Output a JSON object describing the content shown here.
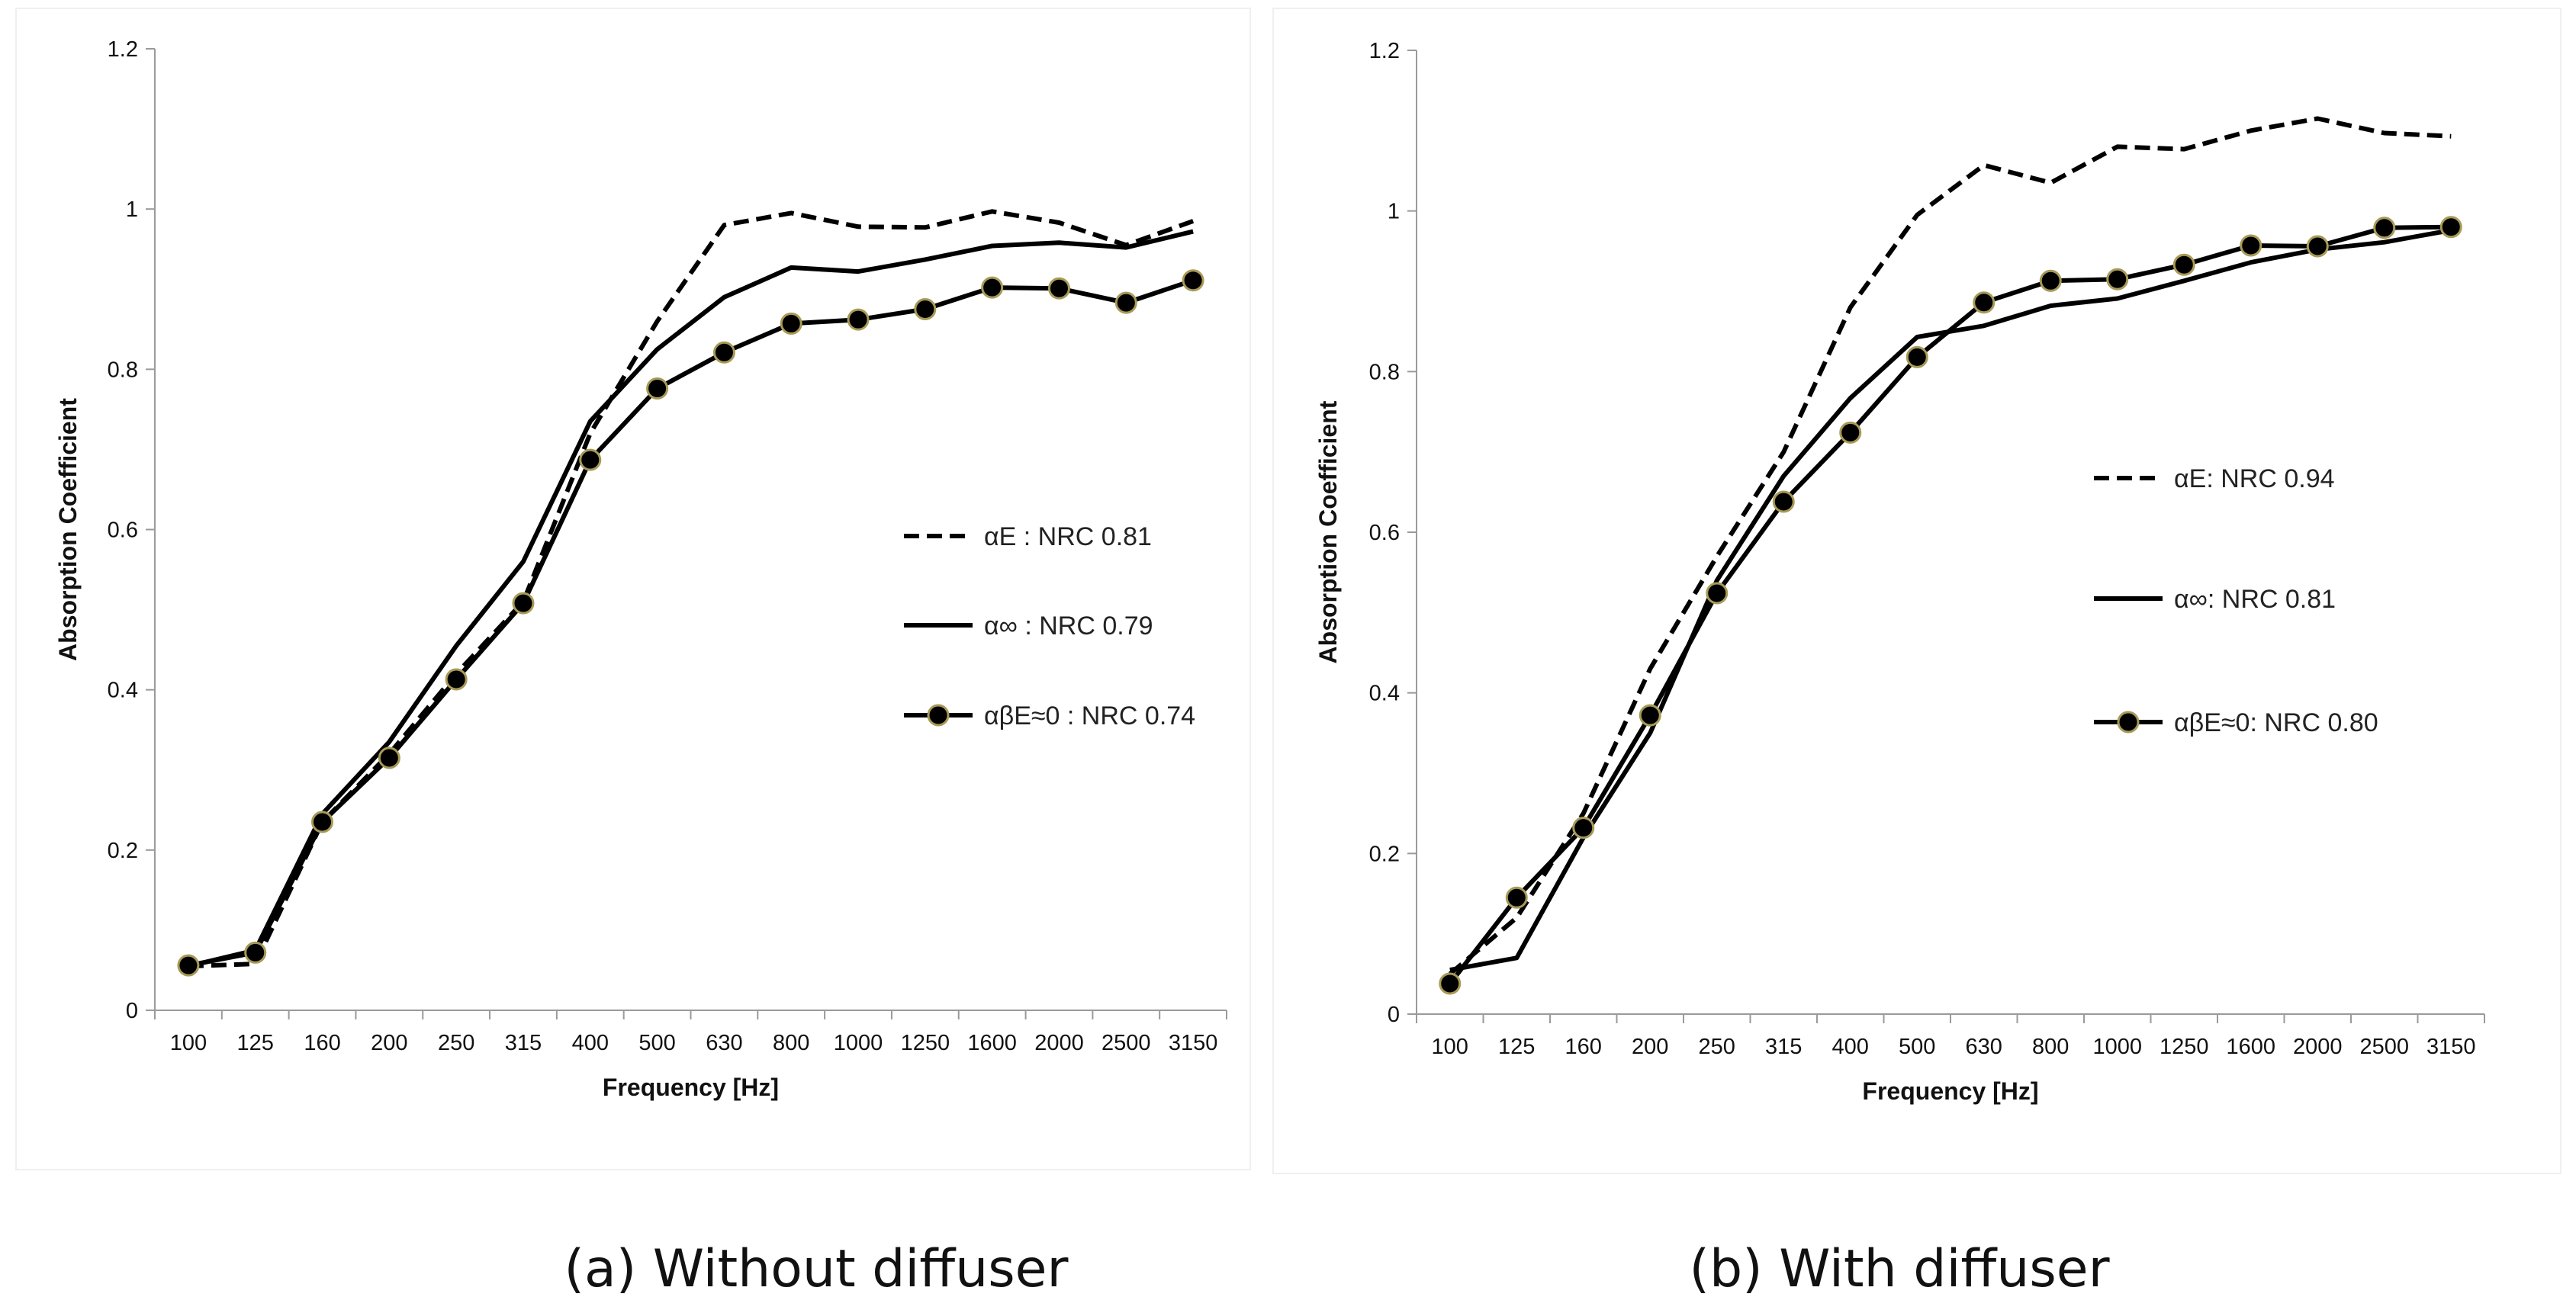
{
  "captions": {
    "a": "(a) Without diffuser",
    "b": "(b) With diffuser"
  },
  "chart_data": [
    {
      "type": "line",
      "panel": "a",
      "title": "",
      "xlabel": "Frequency [Hz]",
      "ylabel": "Absorption Coefficient",
      "categories": [
        "100",
        "125",
        "160",
        "200",
        "250",
        "315",
        "400",
        "500",
        "630",
        "800",
        "1000",
        "1250",
        "1600",
        "2000",
        "2500",
        "3150"
      ],
      "ylim": [
        0,
        1.2
      ],
      "yticks": [
        "0",
        "0.2",
        "0.4",
        "0.6",
        "0.8",
        "1",
        "1.2"
      ],
      "grid": false,
      "legend_position": "right",
      "series": [
        {
          "name": "αE : NRC 0.81",
          "style": "dashed",
          "values": [
            0.055,
            0.058,
            0.235,
            0.32,
            0.42,
            0.51,
            0.72,
            0.86,
            0.98,
            0.995,
            0.978,
            0.977,
            0.997,
            0.983,
            0.955,
            0.985
          ]
        },
        {
          "name": "α∞ : NRC 0.79",
          "style": "solid",
          "values": [
            0.055,
            0.075,
            0.245,
            0.335,
            0.455,
            0.56,
            0.735,
            0.825,
            0.89,
            0.927,
            0.922,
            0.937,
            0.954,
            0.958,
            0.952,
            0.972
          ]
        },
        {
          "name": "αβE≈0 : NRC 0.74",
          "style": "solid-marker",
          "values": [
            0.056,
            0.072,
            0.235,
            0.315,
            0.413,
            0.508,
            0.687,
            0.776,
            0.821,
            0.857,
            0.862,
            0.875,
            0.902,
            0.901,
            0.883,
            0.911
          ]
        }
      ]
    },
    {
      "type": "line",
      "panel": "b",
      "title": "",
      "xlabel": "Frequency [Hz]",
      "ylabel": "Absorption Coefficient",
      "categories": [
        "100",
        "125",
        "160",
        "200",
        "250",
        "315",
        "400",
        "500",
        "630",
        "800",
        "1000",
        "1250",
        "1600",
        "2000",
        "2500",
        "3150"
      ],
      "ylim": [
        0,
        1.2
      ],
      "yticks": [
        "0",
        "0.2",
        "0.4",
        "0.6",
        "0.8",
        "1",
        "1.2"
      ],
      "grid": false,
      "legend_position": "right",
      "series": [
        {
          "name": "αE: NRC 0.94",
          "style": "dashed",
          "values": [
            0.05,
            0.12,
            0.25,
            0.43,
            0.57,
            0.7,
            0.88,
            0.995,
            1.057,
            1.035,
            1.08,
            1.077,
            1.1,
            1.115,
            1.097,
            1.093
          ]
        },
        {
          "name": "α∞: NRC 0.81",
          "style": "solid",
          "values": [
            0.055,
            0.07,
            0.22,
            0.35,
            0.54,
            0.67,
            0.767,
            0.843,
            0.857,
            0.882,
            0.891,
            0.913,
            0.936,
            0.952,
            0.961,
            0.976
          ]
        },
        {
          "name": "αβE≈0: NRC 0.80",
          "style": "solid-marker",
          "values": [
            0.038,
            0.145,
            0.232,
            0.372,
            0.524,
            0.638,
            0.724,
            0.818,
            0.886,
            0.913,
            0.915,
            0.933,
            0.957,
            0.956,
            0.979,
            0.98
          ]
        }
      ]
    }
  ]
}
